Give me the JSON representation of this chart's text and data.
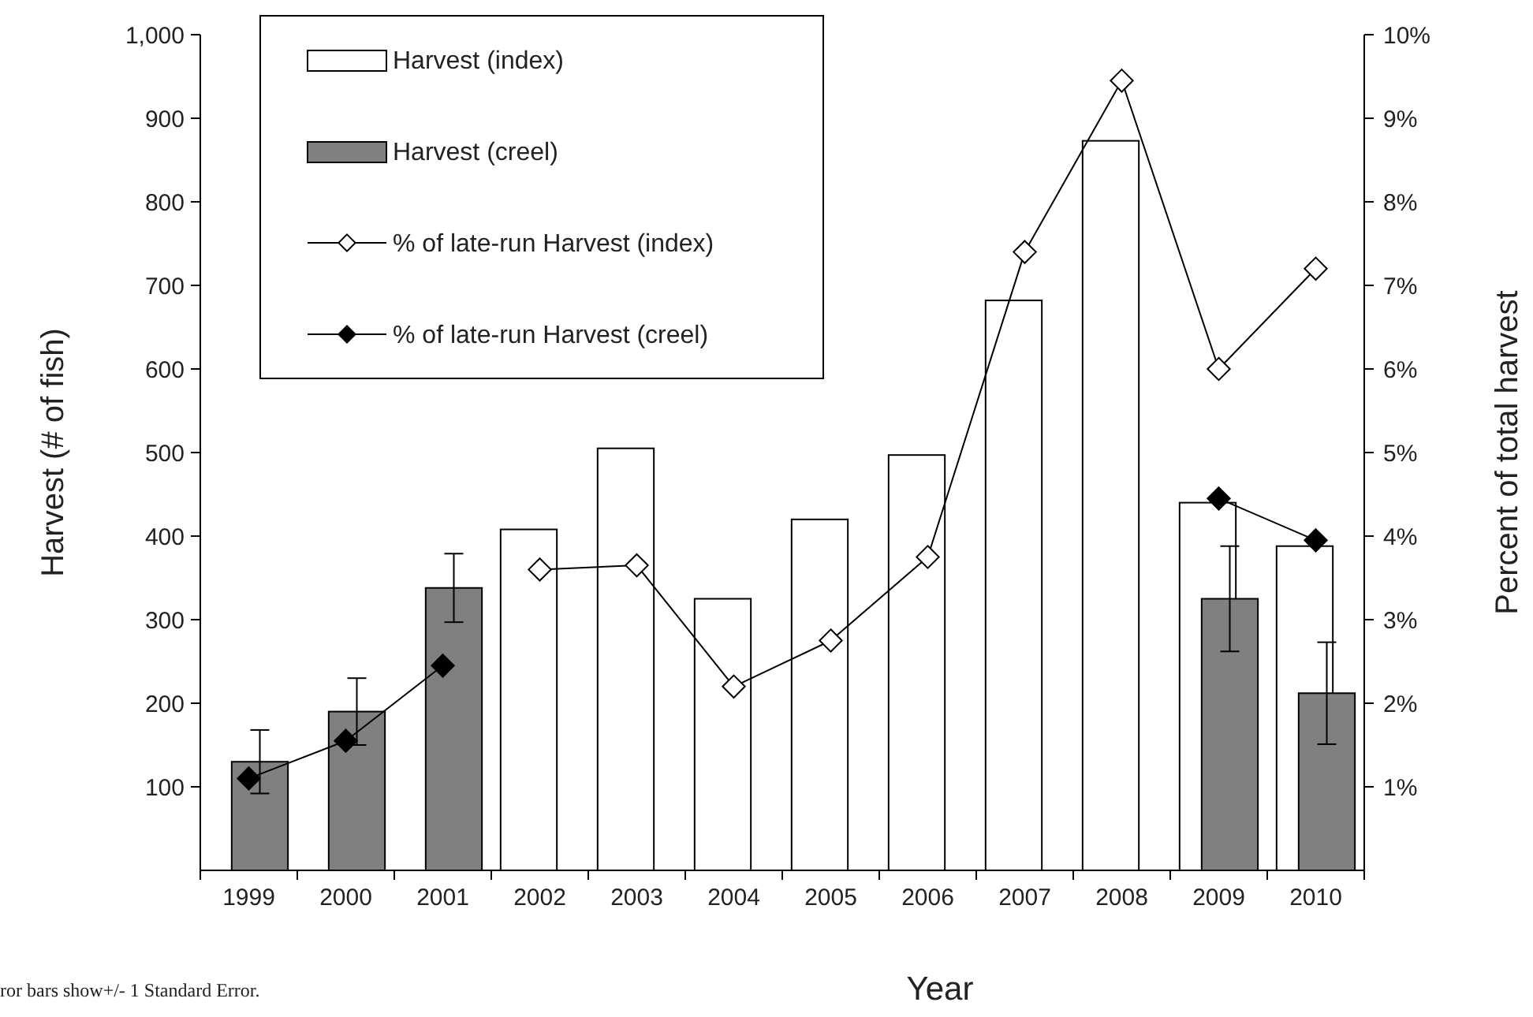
{
  "chart_data": {
    "type": "bar",
    "xlabel": "Year",
    "ylabel": "Harvest (# of fish)",
    "y2label": "Percent of total harvest",
    "categories": [
      "1999",
      "2000",
      "2001",
      "2002",
      "2003",
      "2004",
      "2005",
      "2006",
      "2007",
      "2008",
      "2009",
      "2010"
    ],
    "series": [
      {
        "name": "Harvest (index)",
        "color": "#ffffff",
        "values": [
          null,
          null,
          null,
          408,
          505,
          325,
          420,
          497,
          682,
          873,
          440,
          388
        ]
      },
      {
        "name": "Harvest (creel)",
        "color": "#808080",
        "values": [
          130,
          190,
          338,
          null,
          null,
          null,
          null,
          null,
          null,
          null,
          325,
          212
        ],
        "errors": [
          38,
          40,
          41,
          null,
          null,
          null,
          null,
          null,
          null,
          null,
          63,
          61
        ]
      },
      {
        "name": "% of late-run Harvest (index)",
        "type": "line",
        "axis": "y2",
        "color": "#ffffff",
        "marker": "diamond",
        "values": [
          null,
          null,
          null,
          3.6,
          3.65,
          2.2,
          2.75,
          3.75,
          7.4,
          9.45,
          6.0,
          7.2
        ]
      },
      {
        "name": "% of late-run Harvest (creel)",
        "type": "line",
        "axis": "y2",
        "color": "#000000",
        "marker": "diamond",
        "values": [
          1.1,
          1.55,
          2.45,
          null,
          null,
          null,
          null,
          null,
          null,
          null,
          4.45,
          3.95
        ]
      }
    ],
    "ylim": [
      0,
      1000
    ],
    "yticks": [
      100,
      200,
      300,
      400,
      500,
      600,
      700,
      800,
      900,
      {
        "value": 1000,
        "label": "1,000"
      }
    ],
    "y2lim": [
      0,
      10
    ],
    "y2ticks": [
      {
        "value": 1,
        "label": "1%"
      },
      {
        "value": 2,
        "label": "2%"
      },
      {
        "value": 3,
        "label": "3%"
      },
      {
        "value": 4,
        "label": "4%"
      },
      {
        "value": 5,
        "label": "5%"
      },
      {
        "value": 6,
        "label": "6%"
      },
      {
        "value": 7,
        "label": "7%"
      },
      {
        "value": 8,
        "label": "8%"
      },
      {
        "value": 9,
        "label": "9%"
      },
      {
        "value": 10,
        "label": "10%"
      }
    ],
    "legend": "top left",
    "grid": false,
    "annotations": [
      "ror bars show+/- 1 Standard Error."
    ]
  }
}
